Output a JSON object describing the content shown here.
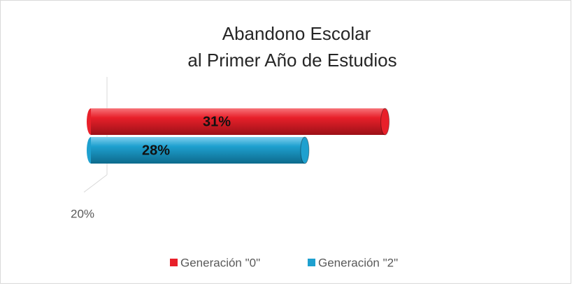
{
  "chart_data": {
    "type": "bar",
    "orientation": "horizontal",
    "title": [
      "Abandono Escolar",
      "al Primer Año de Estudios"
    ],
    "categories": [
      null
    ],
    "series": [
      {
        "name": "Generación \"0\"",
        "color": "#e8202a",
        "values": [
          31
        ],
        "value_labels": [
          "31%"
        ]
      },
      {
        "name": "Generación \"2\"",
        "color": "#1ea0cf",
        "values": [
          28
        ],
        "value_labels": [
          "28%"
        ]
      }
    ],
    "xlim": [
      20,
      37
    ],
    "xticks": [
      {
        "value": 20,
        "label": "20%"
      }
    ],
    "legend": "bottom"
  }
}
